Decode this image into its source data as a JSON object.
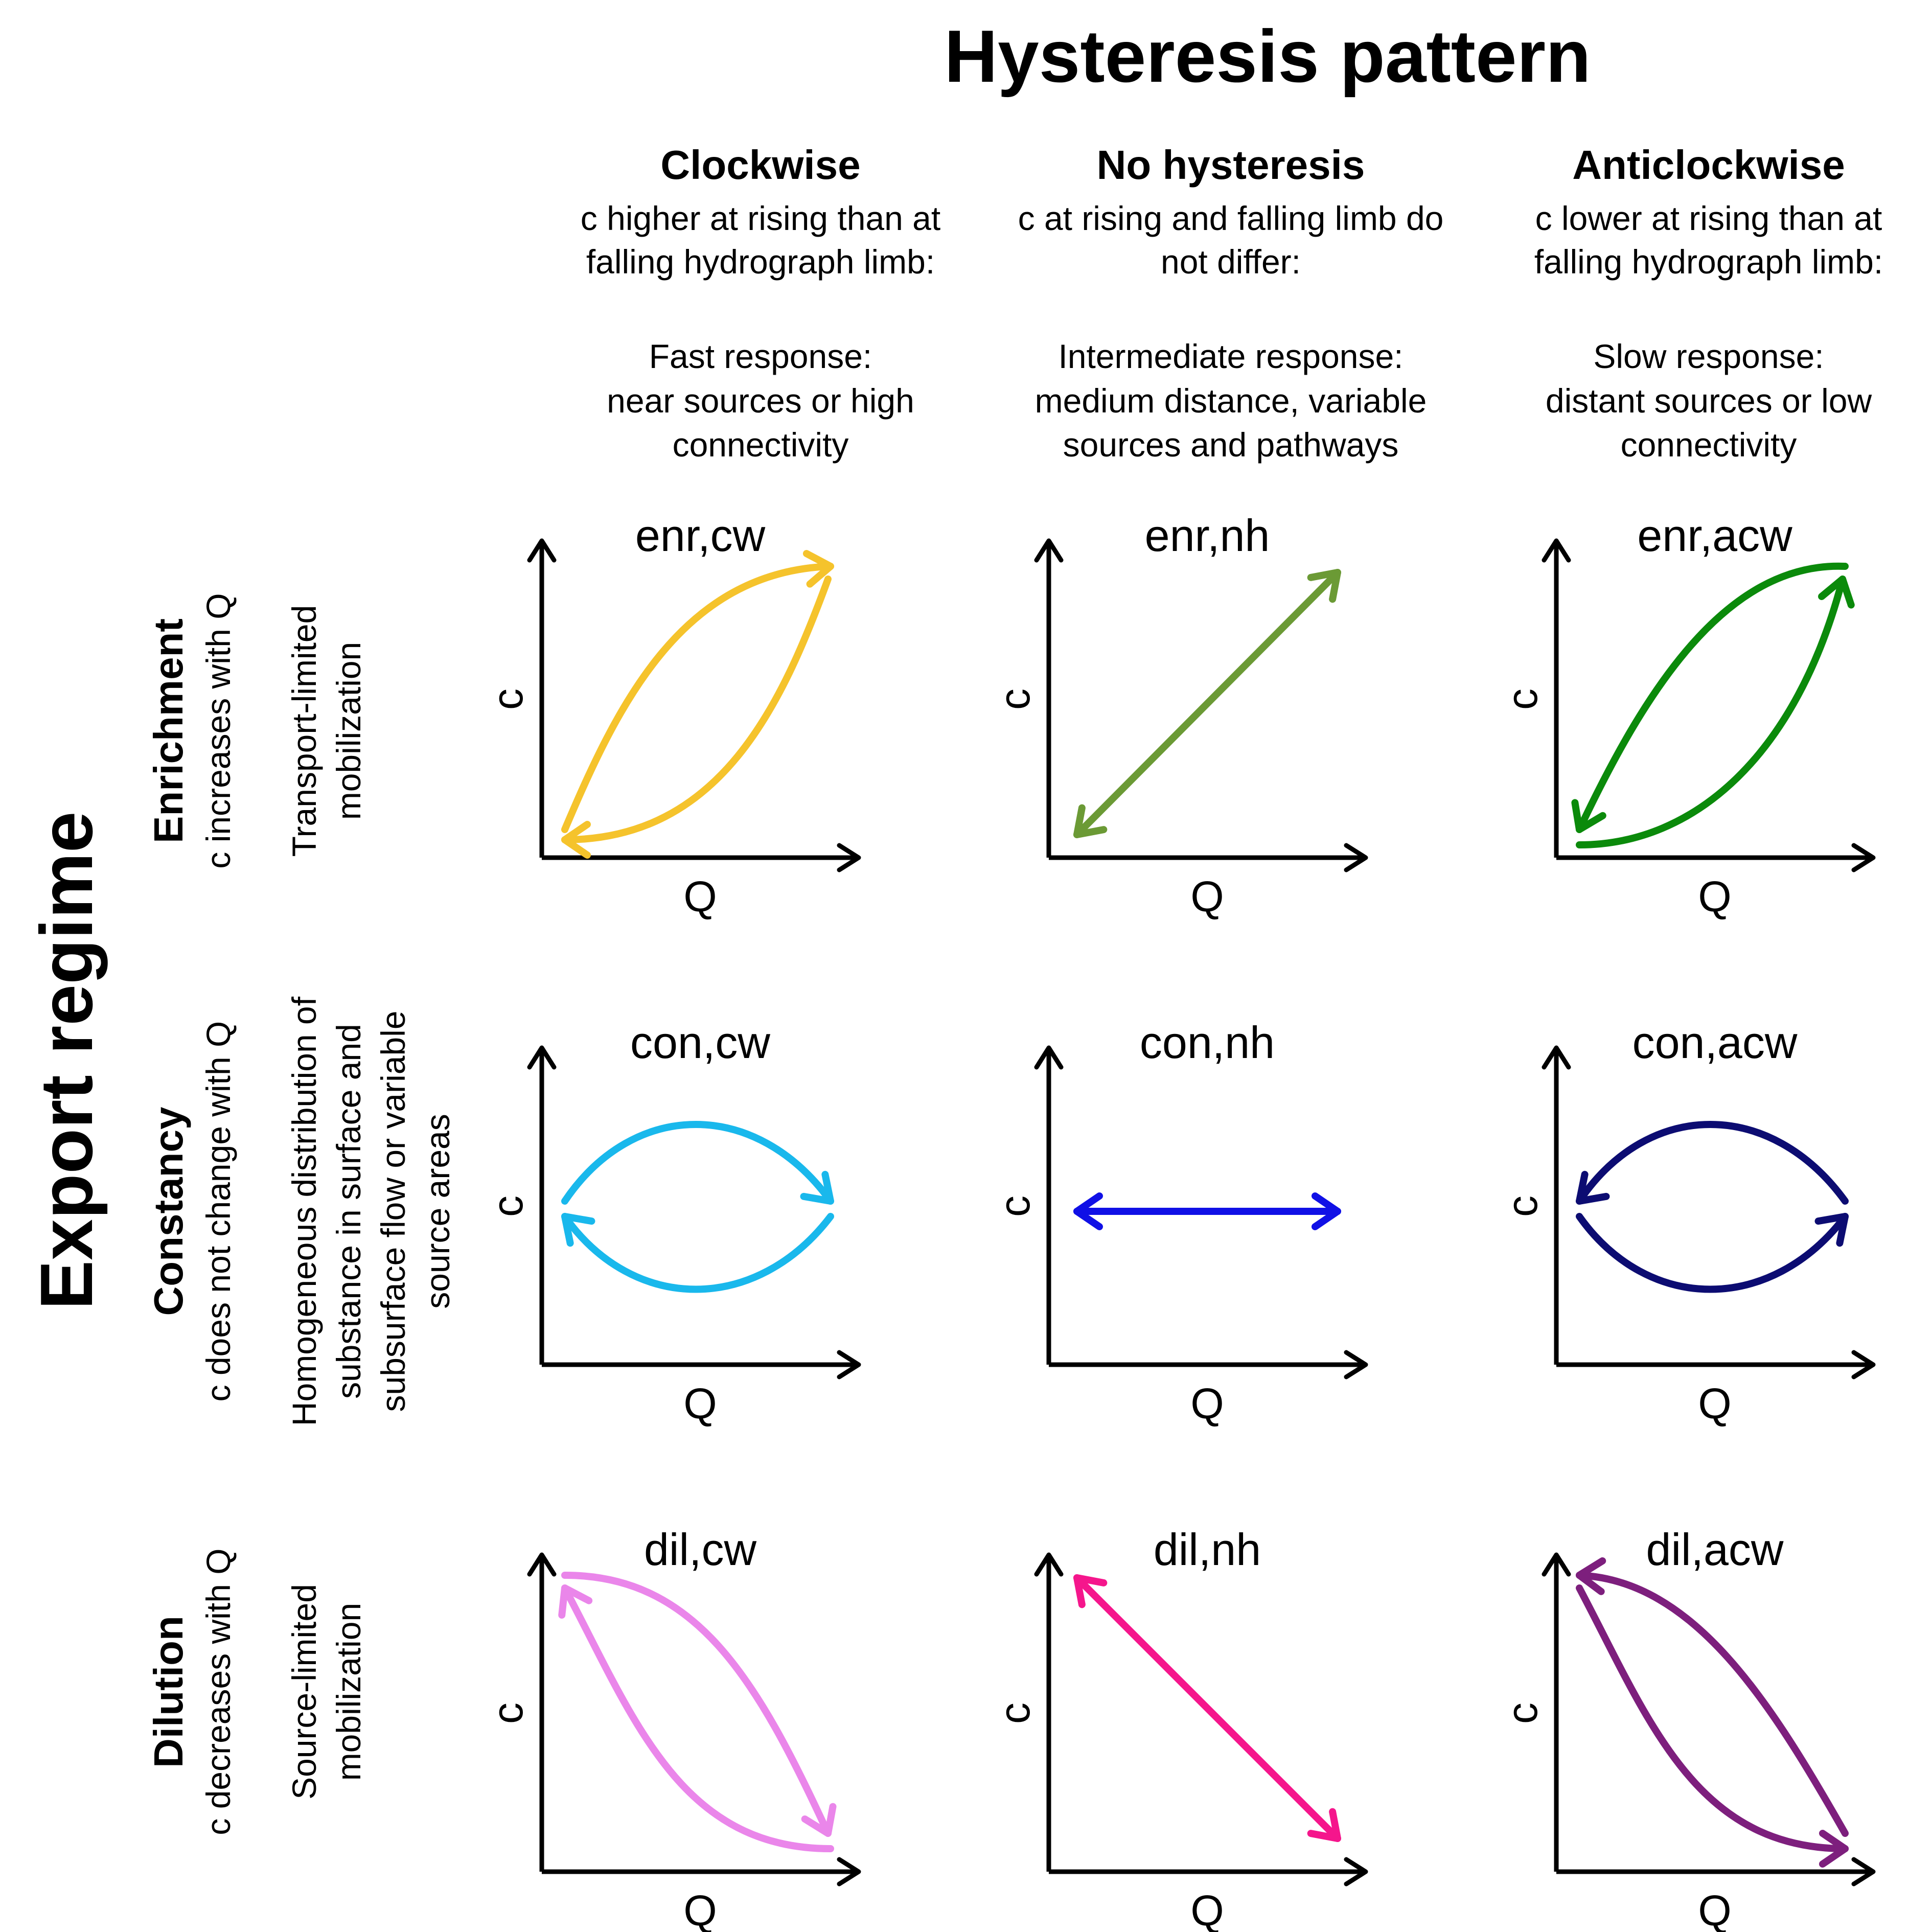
{
  "title": "Hysteresis pattern",
  "row_axis_title": "Export regime",
  "columns": [
    {
      "heading": "Clockwise",
      "desc_lines": [
        "c higher at rising than at",
        "falling hydrograph limb:",
        "",
        "Fast response:",
        "near sources or high",
        "connectivity"
      ]
    },
    {
      "heading": "No hysteresis",
      "desc_lines": [
        "c at rising and falling limb do",
        "not differ:",
        "",
        "Intermediate response:",
        "medium distance, variable",
        "sources and pathways"
      ]
    },
    {
      "heading": "Anticlockwise",
      "desc_lines": [
        "c lower at rising than at",
        "falling hydrograph limb:",
        "",
        "Slow response:",
        "distant sources or low",
        "connectivity"
      ]
    }
  ],
  "rows": [
    {
      "heading": "Enrichment",
      "sub": "c increases with Q",
      "mech_lines": [
        "Transport-limited",
        "mobilization"
      ]
    },
    {
      "heading": "Constancy",
      "sub": "c does not change with Q",
      "mech_lines": [
        "Homogeneous distribution of",
        "substance in surface and",
        "subsurface flow or variable",
        "source areas"
      ]
    },
    {
      "heading": "Dilution",
      "sub": "c decreases with Q",
      "mech_lines": [
        "Source-limited",
        "mobilization"
      ]
    }
  ],
  "panels": [
    {
      "label": "enr,cw",
      "color": "#f5c32c",
      "icon": "clockwise-loop-up-icon"
    },
    {
      "label": "enr,nh",
      "color": "#6b9a35",
      "icon": "double-arrow-up-icon"
    },
    {
      "label": "enr,acw",
      "color": "#0b8a0b",
      "icon": "anticlockwise-loop-up-icon"
    },
    {
      "label": "con,cw",
      "color": "#19b8ec",
      "icon": "clockwise-loop-flat-icon"
    },
    {
      "label": "con,nh",
      "color": "#1010e6",
      "icon": "double-arrow-flat-icon"
    },
    {
      "label": "con,acw",
      "color": "#0c0c72",
      "icon": "anticlockwise-loop-flat-icon"
    },
    {
      "label": "dil,cw",
      "color": "#ea86ea",
      "icon": "clockwise-loop-down-icon"
    },
    {
      "label": "dil,nh",
      "color": "#f5168c",
      "icon": "double-arrow-down-icon"
    },
    {
      "label": "dil,acw",
      "color": "#7d1f7d",
      "icon": "anticlockwise-loop-down-icon"
    }
  ],
  "axis": {
    "x": "Q",
    "y": "c"
  }
}
